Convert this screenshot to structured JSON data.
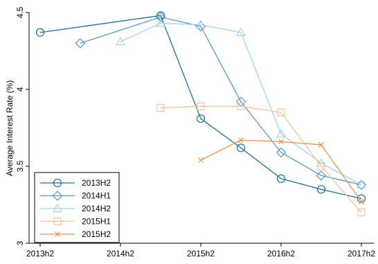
{
  "chart_data": {
    "type": "line",
    "ylabel": "Average Interest Rate (%)",
    "xlabel": "",
    "x_ticks": [
      "2013h2",
      "2014h2",
      "2015h2",
      "2016h2",
      "2017h2"
    ],
    "y_ticks": [
      "3",
      "3.5",
      "4",
      "4.5"
    ],
    "ylim": [
      3,
      4.5
    ],
    "xlim": [
      "2013h2",
      "2017h2"
    ],
    "grid": false,
    "legend_position": "bottom-left",
    "series": [
      {
        "name": "2013H2",
        "color": "#1a6e9e",
        "marker": "circle",
        "points": [
          [
            "2013h2",
            4.37
          ],
          [
            "2015h1",
            4.48
          ],
          [
            "2015h2",
            3.81
          ],
          [
            "2016h1",
            3.62
          ],
          [
            "2016h2",
            3.42
          ],
          [
            "2017h1",
            3.35
          ],
          [
            "2017h2",
            3.29
          ]
        ]
      },
      {
        "name": "2014H1",
        "color": "#5499c7",
        "marker": "diamond",
        "points": [
          [
            "2014h1",
            4.3
          ],
          [
            "2015h1",
            4.47
          ],
          [
            "2015h2",
            4.41
          ],
          [
            "2016h1",
            3.92
          ],
          [
            "2016h2",
            3.59
          ],
          [
            "2017h1",
            3.44
          ],
          [
            "2017h2",
            3.38
          ]
        ]
      },
      {
        "name": "2014H2",
        "color": "#a8d0ea",
        "marker": "triangle",
        "points": [
          [
            "2014h2",
            4.31
          ],
          [
            "2015h1",
            4.43
          ],
          [
            "2015h2",
            4.42
          ],
          [
            "2016h1",
            4.37
          ],
          [
            "2016h2",
            3.71
          ],
          [
            "2017h1",
            3.52
          ],
          [
            "2017h2",
            3.38
          ]
        ]
      },
      {
        "name": "2015H1",
        "color": "#f4c29e",
        "marker": "square",
        "points": [
          [
            "2015h1",
            3.88
          ],
          [
            "2015h2",
            3.89
          ],
          [
            "2016h1",
            3.89
          ],
          [
            "2016h2",
            3.85
          ],
          [
            "2017h1",
            3.5
          ],
          [
            "2017h2",
            3.2
          ]
        ]
      },
      {
        "name": "2015H2",
        "color": "#e8924f",
        "marker": "x",
        "points": [
          [
            "2015h2",
            3.54
          ],
          [
            "2016h1",
            3.67
          ],
          [
            "2016h2",
            3.66
          ],
          [
            "2017h1",
            3.64
          ],
          [
            "2017h2",
            3.27
          ]
        ]
      }
    ]
  }
}
